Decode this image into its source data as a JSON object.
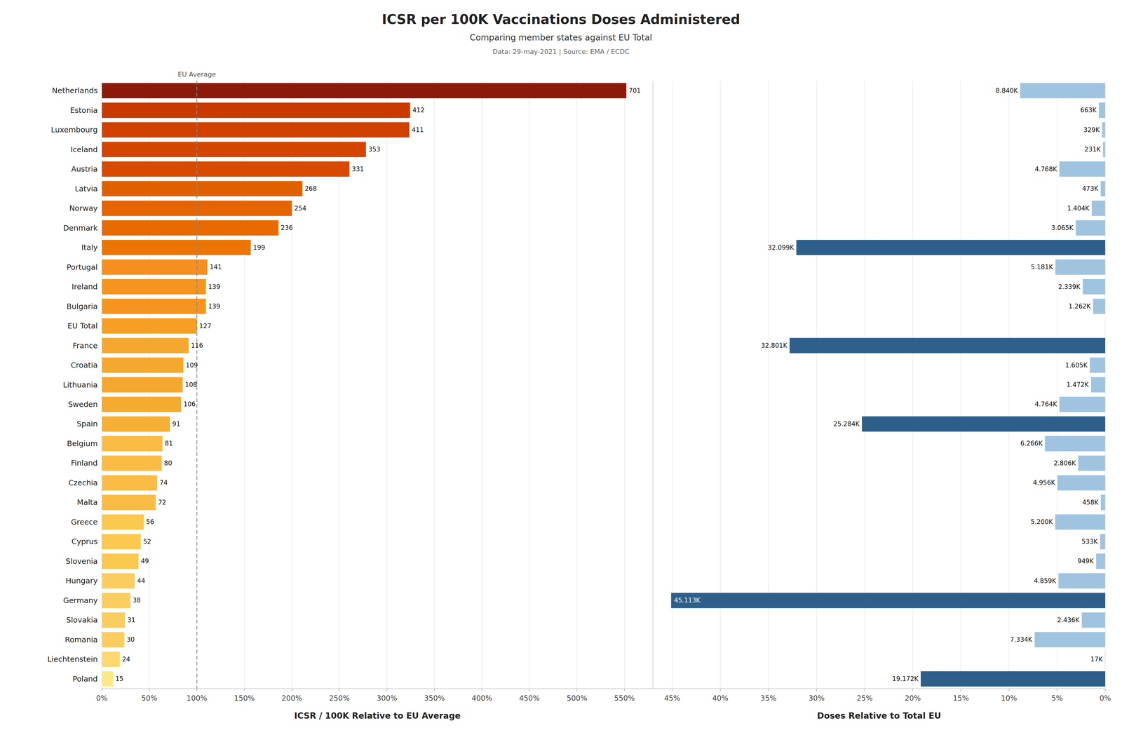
{
  "chart_data": [
    {
      "type": "bar",
      "orientation": "horizontal",
      "title": "ICSR per 100K Vaccinations Doses Administered",
      "subtitle": "Comparing member states against EU Total",
      "annotations": [
        {
          "text": "Data: 29-may-2021 | Source: EMA / ECDC"
        },
        {
          "text": "EU Average",
          "x": 100
        }
      ],
      "x_label": "ICSR / 100K Relative to EU Average",
      "categories": [
        "Netherlands",
        "Estonia",
        "Luxembourg",
        "Iceland",
        "Austria",
        "Latvia",
        "Norway",
        "Denmark",
        "Italy",
        "Portugal",
        "Ireland",
        "Bulgaria",
        "EU Total",
        "France",
        "Croatia",
        "Lithuania",
        "Sweden",
        "Spain",
        "Belgium",
        "Finland",
        "Czechia",
        "Malta",
        "Greece",
        "Cyprus",
        "Slovenia",
        "Hungary",
        "Germany",
        "Slovakia",
        "Romania",
        "Liechtenstein",
        "Poland"
      ],
      "values": [
        551.9685,
        324.4094,
        323.622,
        277.9528,
        260.6299,
        211.0236,
        200,
        185.8268,
        156.6929,
        111.0236,
        109.4488,
        109.4488,
        100,
        91.3386,
        85.8268,
        85.0394,
        83.4646,
        71.6535,
        63.7795,
        62.9921,
        58.2677,
        56.6929,
        44.0945,
        40.9449,
        38.5827,
        34.6457,
        29.9213,
        24.4094,
        23.622,
        18.8976,
        11.811
      ],
      "icsr_values": [
        701,
        412,
        411,
        353,
        331,
        268,
        254,
        236,
        199,
        141,
        139,
        139,
        127,
        116,
        109,
        108,
        106,
        91,
        81,
        80,
        74,
        72,
        56,
        52,
        49,
        44,
        38,
        31,
        30,
        24,
        15
      ],
      "colors": [
        "#8B1A0A",
        "#C93A00",
        "#D04000",
        "#D44500",
        "#D84A00",
        "#E06000",
        "#E46500",
        "#E86A00",
        "#EC7500",
        "#F59020",
        "#F59520",
        "#F59520",
        "#F5A025",
        "#F5A830",
        "#F5A830",
        "#F5A830",
        "#F5AA30",
        "#F5B035",
        "#FBBC45",
        "#FBBC45",
        "#FBBC45",
        "#FBBC45",
        "#FBC850",
        "#FBC850",
        "#FBC850",
        "#FBCC60",
        "#FBCC60",
        "#FBCC60",
        "#FBCC60",
        "#FDD870",
        "#FDE888"
      ],
      "xlim": [
        0,
        580
      ],
      "xticks": [
        {
          "value": 0,
          "label": "0%"
        },
        {
          "value": 50,
          "label": "50%"
        },
        {
          "value": 100,
          "label": "100%"
        },
        {
          "value": 150,
          "label": "150%"
        },
        {
          "value": 200,
          "label": "200%"
        },
        {
          "value": 250,
          "label": "250%"
        },
        {
          "value": 300,
          "label": "300%"
        },
        {
          "value": 350,
          "label": "350%"
        },
        {
          "value": 400,
          "label": "400%"
        },
        {
          "value": 450,
          "label": "450%"
        },
        {
          "value": 500,
          "label": "500%"
        },
        {
          "value": 550,
          "label": "550%"
        }
      ],
      "grid": true
    },
    {
      "type": "bar",
      "orientation": "horizontal",
      "x_label": "Doses Relative to Total EU",
      "categories": [
        "Netherlands",
        "Estonia",
        "Luxembourg",
        "Iceland",
        "Austria",
        "Latvia",
        "Norway",
        "Denmark",
        "Italy",
        "Portugal",
        "Ireland",
        "Bulgaria",
        "EU Total",
        "France",
        "Croatia",
        "Lithuania",
        "Sweden",
        "Spain",
        "Belgium",
        "Finland",
        "Czechia",
        "Malta",
        "Greece",
        "Cyprus",
        "Slovenia",
        "Hungary",
        "Germany",
        "Slovakia",
        "Romania",
        "Liechtenstein",
        "Poland"
      ],
      "values": [
        8.84,
        0.663,
        0.329,
        0.231,
        4.768,
        0.473,
        1.404,
        3.065,
        32.099,
        5.181,
        2.339,
        1.262,
        null,
        32.801,
        1.605,
        1.472,
        4.764,
        25.284,
        6.266,
        2.806,
        4.956,
        0.458,
        5.2,
        0.533,
        0.949,
        4.859,
        45.113,
        2.436,
        7.334,
        0.017,
        19.172
      ],
      "value_labels": [
        "8.840K",
        "663K",
        "329K",
        "231K",
        "4.768K",
        "473K",
        "1.404K",
        "3.065K",
        "32.099K",
        "5.181K",
        "2.339K",
        "1.262K",
        null,
        "32.801K",
        "1.605K",
        "1.472K",
        "4.764K",
        "25.284K",
        "6.266K",
        "2.806K",
        "4.956K",
        "458K",
        "5.200K",
        "533K",
        "949K",
        "4.859K",
        "45.113K",
        "2.436K",
        "7.334K",
        "17K",
        "19.172K"
      ],
      "data_labels": true,
      "colors": [
        "#A0C4E0",
        "#A0C4E0",
        "#A0C4E0",
        "#A0C4E0",
        "#A0C4E0",
        "#A0C4E0",
        "#A0C4E0",
        "#A0C4E0",
        "#2E5F8A",
        "#A0C4E0",
        "#A0C4E0",
        "#A0C4E0",
        null,
        "#2E5F8A",
        "#A0C4E0",
        "#A0C4E0",
        "#A0C4E0",
        "#2E5F8A",
        "#A0C4E0",
        "#A0C4E0",
        "#A0C4E0",
        "#A0C4E0",
        "#A0C4E0",
        "#A0C4E0",
        "#A0C4E0",
        "#A0C4E0",
        "#2E5F8A",
        "#A0C4E0",
        "#A0C4E0",
        "#A0C4E0",
        "#2E5F8A"
      ],
      "xlim": [
        47,
        0
      ],
      "xticks": [
        {
          "value": 45,
          "label": "45%"
        },
        {
          "value": 40,
          "label": "40%"
        },
        {
          "value": 35,
          "label": "35%"
        },
        {
          "value": 30,
          "label": "30%"
        },
        {
          "value": 25,
          "label": "25%"
        },
        {
          "value": 20,
          "label": "20%"
        },
        {
          "value": 15,
          "label": "15%"
        },
        {
          "value": 10,
          "label": "10%"
        },
        {
          "value": 5,
          "label": "5%"
        },
        {
          "value": 0,
          "label": "0%"
        }
      ],
      "tick_labels": "x",
      "grid": true
    }
  ]
}
